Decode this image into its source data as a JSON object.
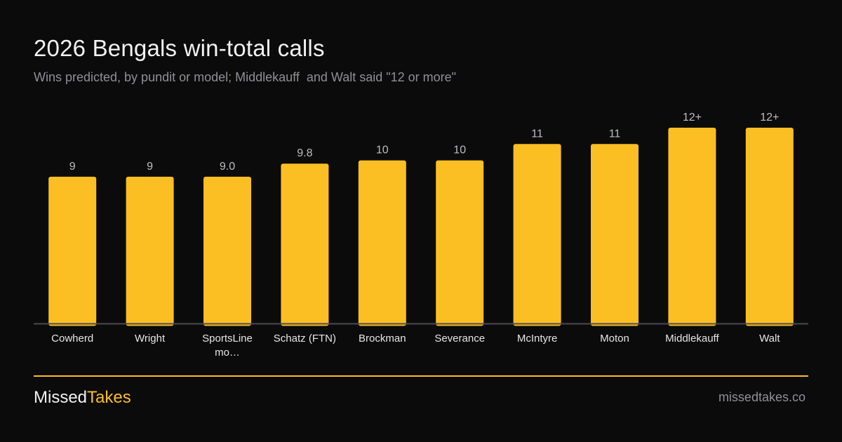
{
  "header": {
    "title": "2026 Bengals win-total calls",
    "subtitle": "Wins predicted, by pundit or model; Middlekauff  and Walt said \"12 or more\""
  },
  "chart_data": {
    "type": "bar",
    "categories": [
      "Cowherd",
      "Wright",
      "SportsLine mo…",
      "Schatz (FTN)",
      "Brockman",
      "Severance",
      "McIntyre",
      "Moton",
      "Middlekauff",
      "Walt"
    ],
    "values": [
      9,
      9,
      9.0,
      9.8,
      10,
      10,
      11,
      11,
      12,
      12
    ],
    "data_labels": [
      "9",
      "9",
      "9.0",
      "9.8",
      "10",
      "10",
      "11",
      "11",
      "12+",
      "12+"
    ],
    "title": "2026 Bengals win-total calls",
    "subtitle": "Wins predicted, by pundit or model; Middlekauff  and Walt said \"12 or more\"",
    "xlabel": "",
    "ylabel": "",
    "ylim": [
      0,
      12
    ],
    "grid": false,
    "colors": {
      "bar": "#fbbf24",
      "background": "#0b0b0b",
      "baseline": "#4a4a52",
      "label": "#bdbdc4",
      "tick": "#e6e6e6"
    }
  },
  "footer": {
    "brand_part1": "Missed",
    "brand_part2": "Takes",
    "site": "missedtakes.co",
    "accent_color": "#fbbf24"
  }
}
